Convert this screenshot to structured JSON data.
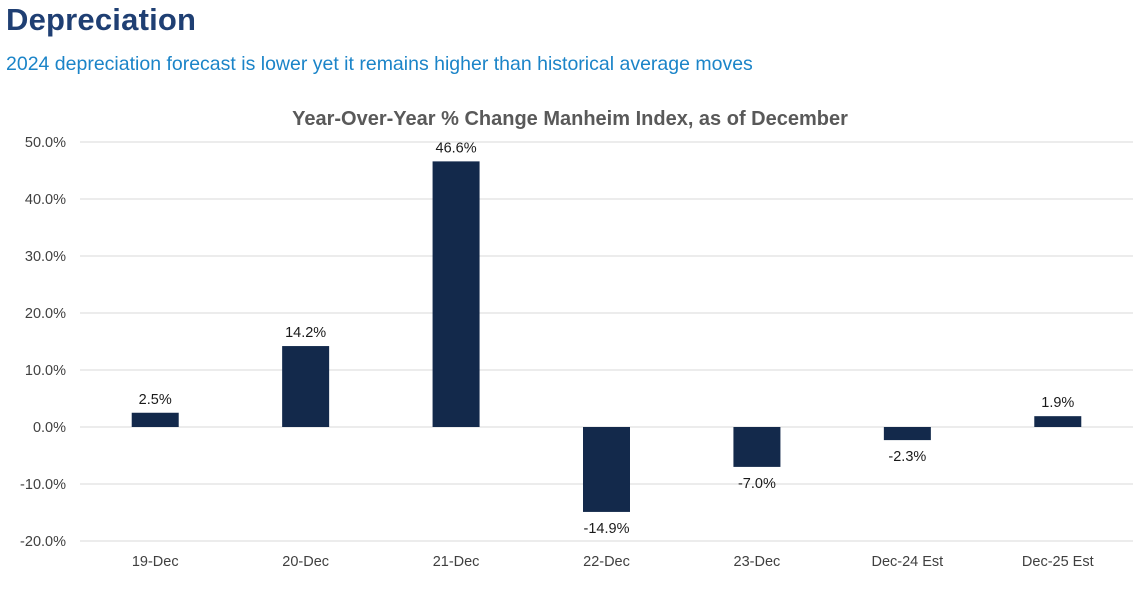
{
  "header": {
    "title": "Depreciation",
    "subtitle": "2024 depreciation forecast is lower yet it remains higher than historical average moves"
  },
  "chart_data": {
    "type": "bar",
    "title": "Year-Over-Year % Change Manheim Index, as of December",
    "categories": [
      "19-Dec",
      "20-Dec",
      "21-Dec",
      "22-Dec",
      "23-Dec",
      "Dec-24 Est",
      "Dec-25 Est"
    ],
    "values": [
      2.5,
      14.2,
      46.6,
      -14.9,
      -7.0,
      -2.3,
      1.9
    ],
    "value_labels": [
      "2.5%",
      "14.2%",
      "46.6%",
      "-14.9%",
      "-7.0%",
      "-2.3%",
      "1.9%"
    ],
    "ylim": [
      -20,
      50
    ],
    "yticks": [
      50,
      40,
      30,
      20,
      10,
      0,
      -10,
      -20
    ],
    "ytick_labels": [
      "50.0%",
      "40.0%",
      "30.0%",
      "20.0%",
      "10.0%",
      "0.0%",
      "-10.0%",
      "-20.0%"
    ],
    "grid": true,
    "bar_color": "#13294b",
    "grid_color": "#d9d9d9"
  }
}
